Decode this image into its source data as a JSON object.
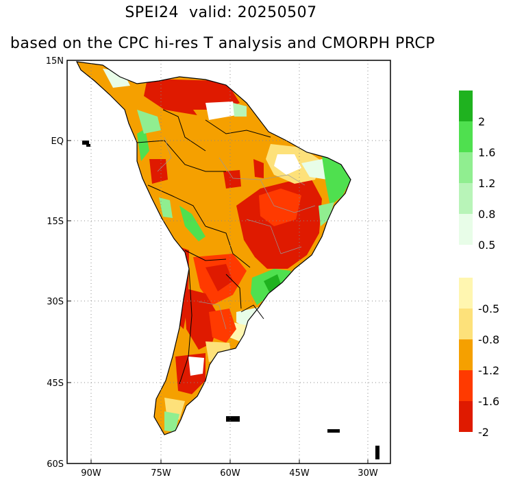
{
  "title": {
    "line1": "SPEI24  valid: 20250507",
    "line2": "based on the CPC hi-res T analysis and CMORPH PRCP"
  },
  "map": {
    "lat_labels": [
      "15N",
      "EQ",
      "15S",
      "30S",
      "45S",
      "60S"
    ],
    "lon_labels": [
      "90W",
      "75W",
      "60W",
      "45W",
      "30W"
    ],
    "grid": "dotted",
    "land_base_color": "#f5a000",
    "ocean_color": "#ffffff"
  },
  "legend_wet": {
    "labels": [
      "2",
      "1.6",
      "1.2",
      "0.8",
      "0.5"
    ],
    "colors": [
      "#1fb21f",
      "#4fe04f",
      "#90ee90",
      "#b8f4b8",
      "#e8fde8"
    ]
  },
  "legend_dry": {
    "labels": [
      "-0.5",
      "-0.8",
      "-1.2",
      "-1.6",
      "-2"
    ],
    "colors": [
      "#fff6b0",
      "#fde17a",
      "#f5a000",
      "#ff3a00",
      "#df1a00"
    ]
  }
}
